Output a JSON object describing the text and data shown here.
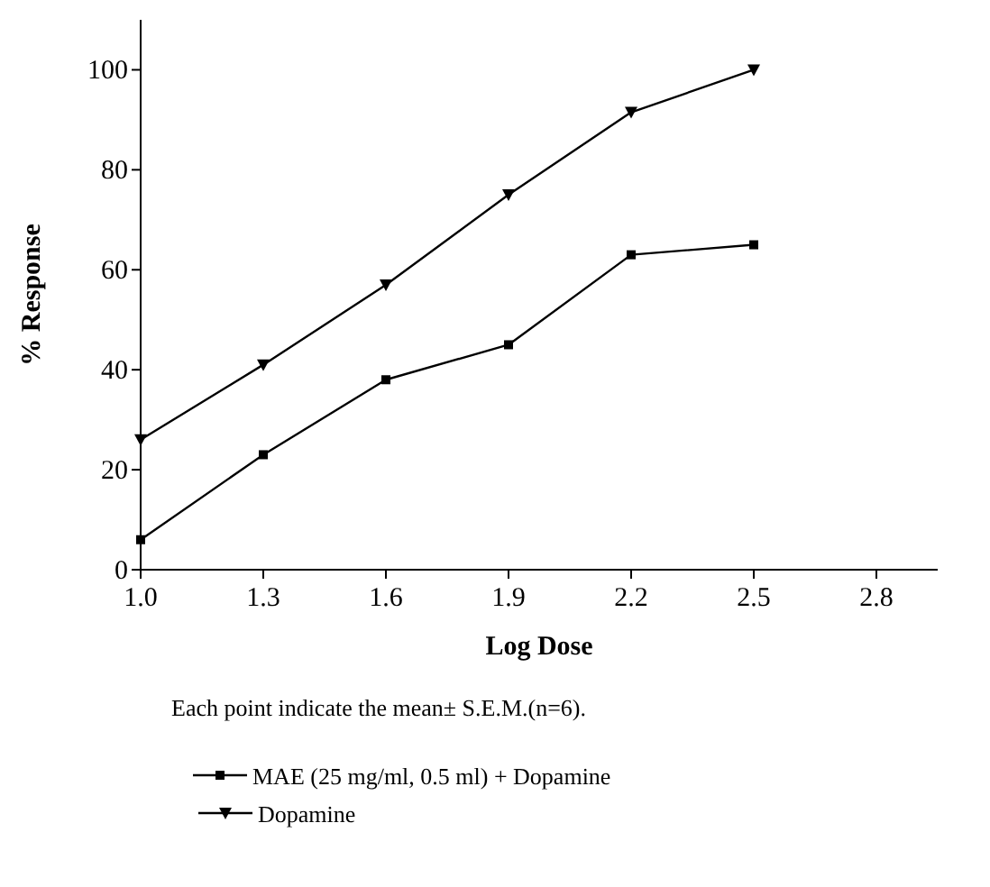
{
  "chart_data": {
    "type": "line",
    "xlabel": "Log Dose",
    "ylabel": "% Response",
    "x": [
      1.0,
      1.3,
      1.6,
      1.9,
      2.2,
      2.5
    ],
    "series": [
      {
        "name": "MAE (25 mg/ml, 0.5 ml) + Dopamine",
        "color": "#000000",
        "values": [
          6,
          23,
          38,
          45,
          63,
          65
        ],
        "marker": "square"
      },
      {
        "name": "Dopamine",
        "color": "#000000",
        "values": [
          26,
          41,
          57,
          75,
          91.5,
          100
        ],
        "marker": "triangle"
      }
    ],
    "xlim": [
      1.0,
      2.95
    ],
    "xticks": [
      {
        "value": 1.0,
        "label": "1.0"
      },
      1.3,
      1.6,
      1.9,
      2.2,
      2.5,
      2.8
    ],
    "ylim": [
      0,
      110
    ],
    "yticks": [
      0,
      20,
      40,
      60,
      80,
      100
    ],
    "annotations": [
      "Each point indicate the mean± S.E.M.(n=6)."
    ],
    "legend": "bottom",
    "grid": false,
    "line_style": "solid"
  }
}
